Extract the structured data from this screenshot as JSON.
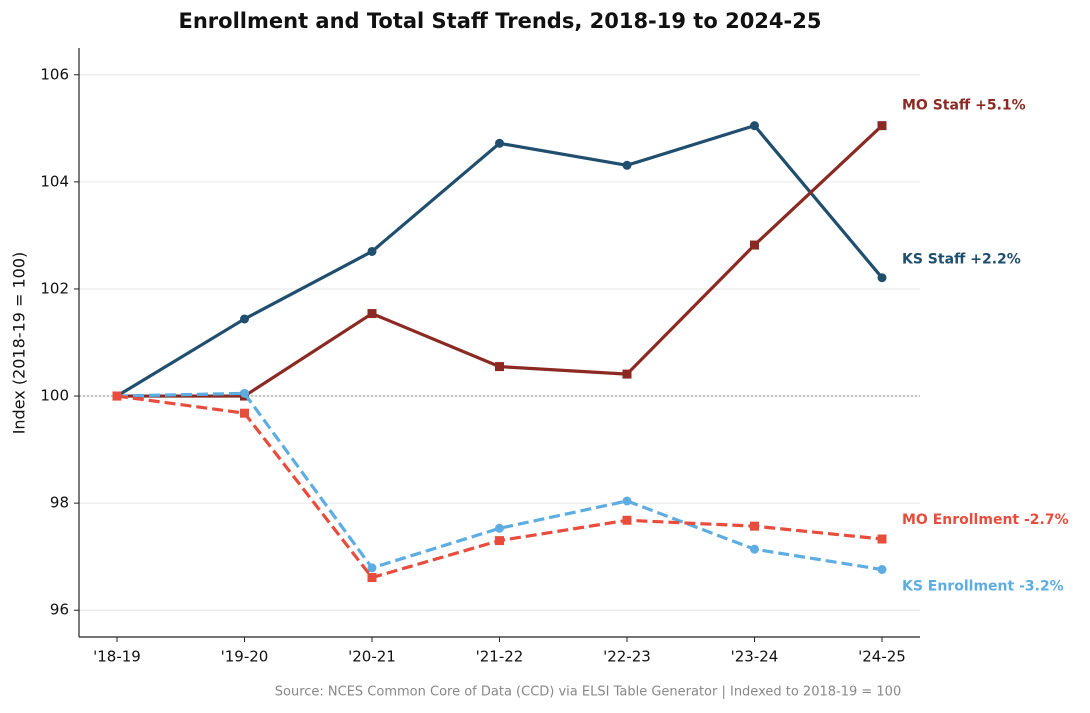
{
  "chart_data": {
    "type": "line",
    "title": "Enrollment and Total Staff Trends, 2018-19 to 2024-25",
    "y_label": "Index (2018-19 = 100)",
    "source": "Source: NCES Common Core of Data (CCD) via ELSI Table Generator  |  Indexed to 2018-19 = 100",
    "categories": [
      "'18-19",
      "'19-20",
      "'20-21",
      "'21-22",
      "'22-23",
      "'23-24",
      "'24-25"
    ],
    "ylim": [
      95.5,
      106.5
    ],
    "yticks": [
      96,
      98,
      100,
      102,
      104,
      106
    ],
    "grid": true,
    "reference_line": 100,
    "series": [
      {
        "name": "KS Staff",
        "label": "KS Staff +2.2%",
        "color": "#1f4e6e",
        "linestyle": "solid",
        "marker": "circle",
        "values": [
          100,
          101.44,
          102.7,
          104.72,
          104.31,
          105.05,
          102.21
        ]
      },
      {
        "name": "MO Staff",
        "label": "MO Staff +5.1%",
        "color": "#8b2a22",
        "linestyle": "solid",
        "marker": "square",
        "values": [
          100,
          100,
          101.54,
          100.55,
          100.41,
          102.82,
          105.05
        ]
      },
      {
        "name": "KS Enrollment",
        "label": "KS Enrollment -3.2%",
        "color": "#5dade2",
        "linestyle": "dashed",
        "marker": "circle",
        "values": [
          100,
          100.05,
          96.79,
          97.53,
          98.04,
          97.14,
          96.76
        ]
      },
      {
        "name": "MO Enrollment",
        "label": "MO Enrollment -2.7%",
        "color": "#e74c3c",
        "linestyle": "dashed",
        "marker": "square",
        "values": [
          100,
          99.68,
          96.61,
          97.3,
          97.68,
          97.57,
          97.33
        ]
      }
    ]
  }
}
